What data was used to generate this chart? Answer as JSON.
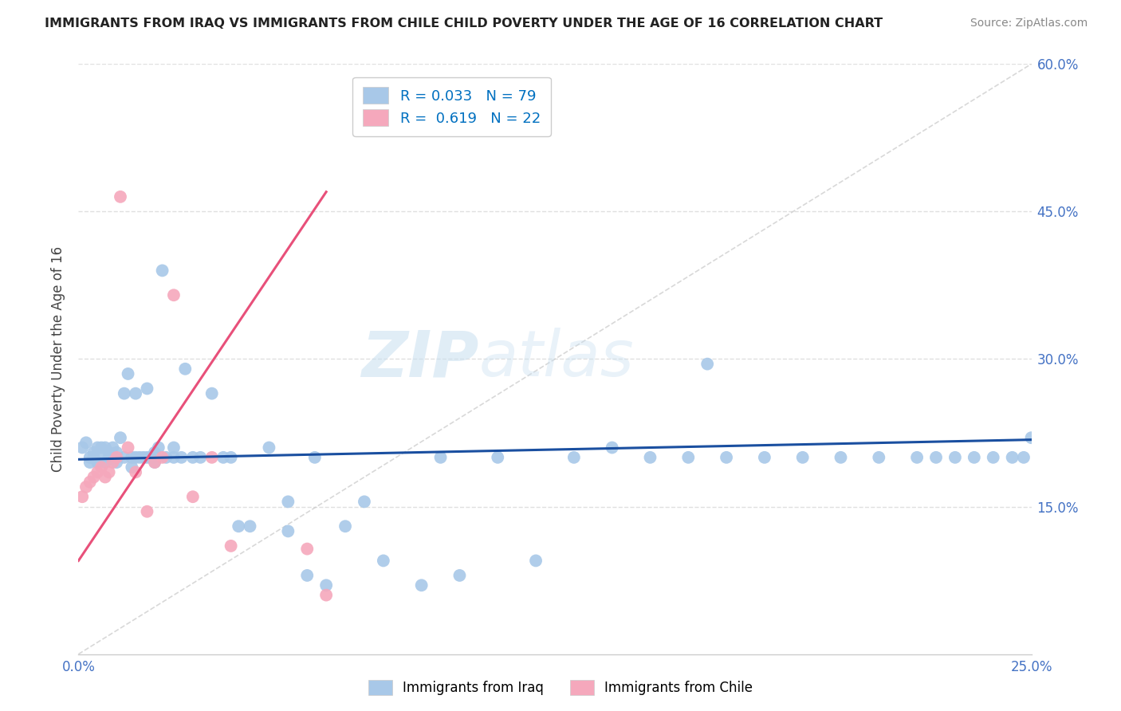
{
  "title": "IMMIGRANTS FROM IRAQ VS IMMIGRANTS FROM CHILE CHILD POVERTY UNDER THE AGE OF 16 CORRELATION CHART",
  "source": "Source: ZipAtlas.com",
  "ylabel": "Child Poverty Under the Age of 16",
  "legend_iraq": "Immigrants from Iraq",
  "legend_chile": "Immigrants from Chile",
  "xlim": [
    0.0,
    0.25
  ],
  "ylim": [
    0.0,
    0.6
  ],
  "iraq_R": 0.033,
  "iraq_N": 79,
  "chile_R": 0.619,
  "chile_N": 22,
  "iraq_color": "#a8c8e8",
  "chile_color": "#f5a8bc",
  "iraq_line_color": "#1a4fa0",
  "chile_line_color": "#e8507a",
  "ref_line_color": "#c8c8c8",
  "grid_color": "#e0e0e0",
  "bg_color": "#ffffff",
  "watermark1": "ZIP",
  "watermark2": "atlas",
  "iraq_x": [
    0.001,
    0.002,
    0.003,
    0.003,
    0.004,
    0.004,
    0.005,
    0.005,
    0.006,
    0.006,
    0.007,
    0.007,
    0.008,
    0.008,
    0.009,
    0.009,
    0.01,
    0.01,
    0.011,
    0.012,
    0.012,
    0.013,
    0.014,
    0.014,
    0.015,
    0.015,
    0.016,
    0.017,
    0.018,
    0.018,
    0.019,
    0.02,
    0.02,
    0.021,
    0.022,
    0.023,
    0.025,
    0.025,
    0.027,
    0.028,
    0.03,
    0.032,
    0.035,
    0.038,
    0.04,
    0.042,
    0.045,
    0.05,
    0.055,
    0.06,
    0.062,
    0.065,
    0.07,
    0.075,
    0.08,
    0.09,
    0.095,
    0.1,
    0.11,
    0.12,
    0.13,
    0.14,
    0.15,
    0.16,
    0.17,
    0.18,
    0.19,
    0.2,
    0.21,
    0.22,
    0.225,
    0.23,
    0.235,
    0.24,
    0.245,
    0.248,
    0.25,
    0.165,
    0.055
  ],
  "iraq_y": [
    0.21,
    0.215,
    0.2,
    0.195,
    0.205,
    0.2,
    0.21,
    0.195,
    0.2,
    0.21,
    0.195,
    0.21,
    0.205,
    0.2,
    0.21,
    0.2,
    0.205,
    0.195,
    0.22,
    0.2,
    0.265,
    0.285,
    0.19,
    0.2,
    0.2,
    0.265,
    0.2,
    0.2,
    0.27,
    0.2,
    0.2,
    0.205,
    0.195,
    0.21,
    0.39,
    0.2,
    0.21,
    0.2,
    0.2,
    0.29,
    0.2,
    0.2,
    0.265,
    0.2,
    0.2,
    0.13,
    0.13,
    0.21,
    0.125,
    0.08,
    0.2,
    0.07,
    0.13,
    0.155,
    0.095,
    0.07,
    0.2,
    0.08,
    0.2,
    0.095,
    0.2,
    0.21,
    0.2,
    0.2,
    0.2,
    0.2,
    0.2,
    0.2,
    0.2,
    0.2,
    0.2,
    0.2,
    0.2,
    0.2,
    0.2,
    0.2,
    0.22,
    0.295,
    0.155
  ],
  "chile_x": [
    0.001,
    0.002,
    0.003,
    0.004,
    0.005,
    0.006,
    0.007,
    0.008,
    0.009,
    0.01,
    0.011,
    0.013,
    0.015,
    0.018,
    0.02,
    0.022,
    0.025,
    0.03,
    0.035,
    0.04,
    0.06,
    0.065
  ],
  "chile_y": [
    0.16,
    0.17,
    0.175,
    0.18,
    0.185,
    0.19,
    0.18,
    0.185,
    0.195,
    0.2,
    0.465,
    0.21,
    0.185,
    0.145,
    0.195,
    0.2,
    0.365,
    0.16,
    0.2,
    0.11,
    0.107,
    0.06
  ],
  "iraq_trend_x": [
    0.0,
    0.25
  ],
  "iraq_trend_y": [
    0.198,
    0.218
  ],
  "chile_trend_x": [
    0.0,
    0.065
  ],
  "chile_trend_y": [
    0.095,
    0.47
  ],
  "ref_line_x": [
    0.0,
    0.25
  ],
  "ref_line_y": [
    0.0,
    0.6
  ]
}
